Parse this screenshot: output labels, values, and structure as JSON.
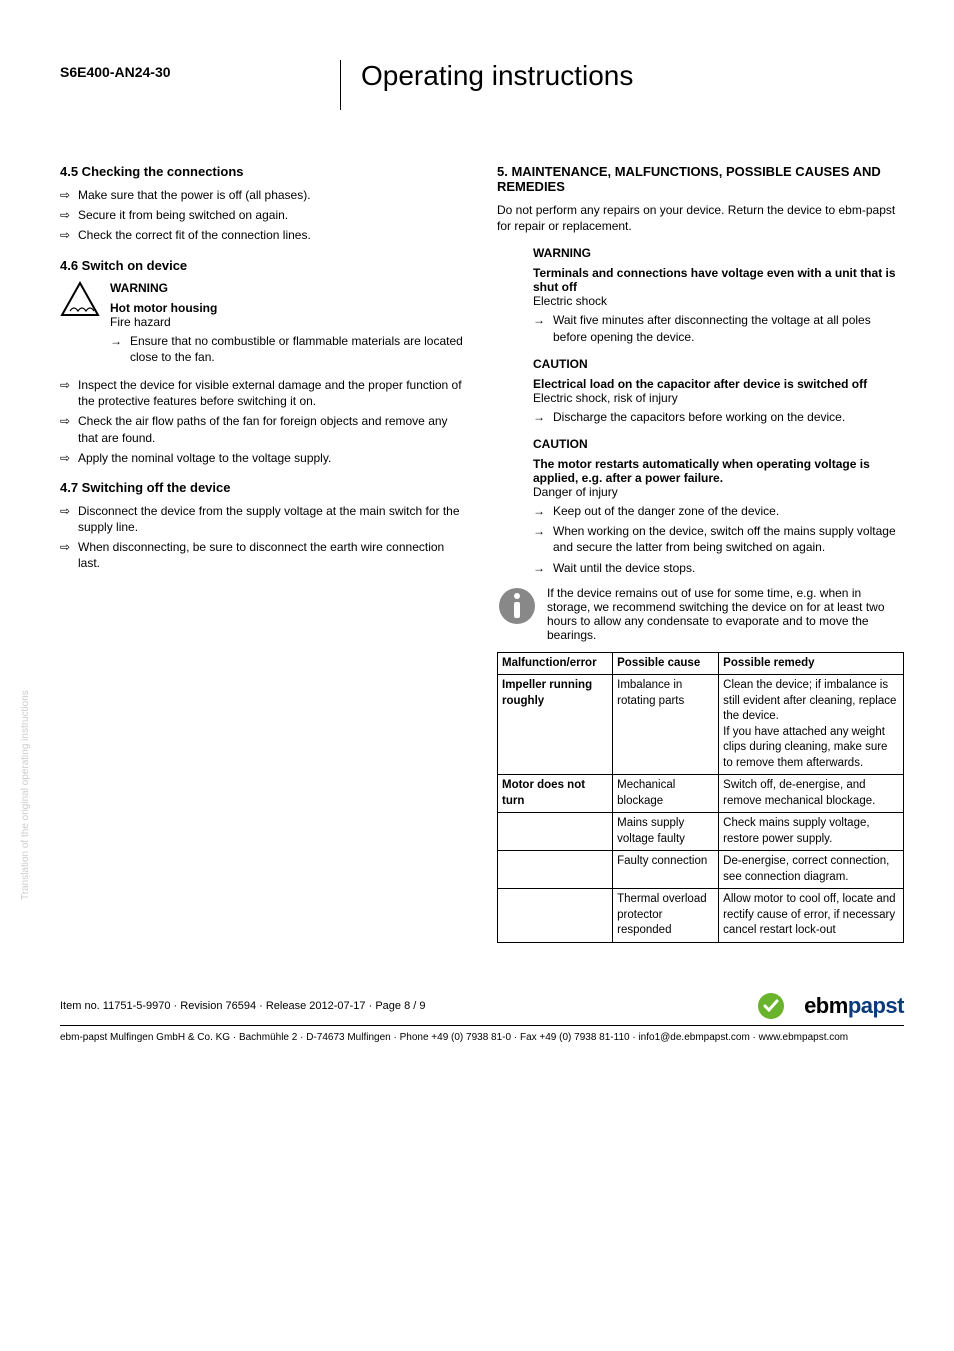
{
  "header": {
    "product_code": "S6E400-AN24-30",
    "title": "Operating instructions"
  },
  "side_text": "Translation of the original operating instructions",
  "left": {
    "s45_title": "4.5 Checking the connections",
    "s45_items": [
      "Make sure that the power is off (all phases).",
      "Secure it from being switched on again.",
      "Check the correct fit of the connection lines."
    ],
    "s46_title": "4.6 Switch on device",
    "s46_warning_label": "WARNING",
    "s46_warning_bold": "Hot motor housing",
    "s46_warning_text": "Fire hazard",
    "s46_warning_arrow": "Ensure that no combustible or flammable materials are located close to the fan.",
    "s46_items": [
      "Inspect the device for visible external damage and the proper function of the protective features before switching it on.",
      "Check the air flow paths of the fan for foreign objects and remove any that are found.",
      "Apply the nominal voltage to the voltage supply."
    ],
    "s47_title": "4.7 Switching off the device",
    "s47_items": [
      "Disconnect the device from the supply voltage at the main switch for the supply line.",
      "When disconnecting, be sure to disconnect the earth wire connection last."
    ]
  },
  "right": {
    "s5_title": "5. MAINTENANCE, MALFUNCTIONS, POSSIBLE CAUSES AND REMEDIES",
    "s5_intro": "Do not perform any repairs on your device. Return the device to ebm-papst for repair or replacement.",
    "w1_label": "WARNING",
    "w1_bold": "Terminals and connections have voltage even with a unit that is shut off",
    "w1_text": "Electric shock",
    "w1_arrow": "Wait five minutes after disconnecting the voltage at all poles before opening the device.",
    "c1_label": "CAUTION",
    "c1_bold": "Electrical load on the capacitor after device is switched off",
    "c1_text": "Electric shock, risk of injury",
    "c1_arrow": "Discharge the capacitors before working on the device.",
    "c2_label": "CAUTION",
    "c2_bold": "The motor restarts automatically when operating voltage is applied, e.g. after a power failure.",
    "c2_text": "Danger of injury",
    "c2_arrows": [
      "Keep out of the danger zone of the device.",
      "When working on the device, switch off the mains supply voltage and secure the latter from being switched on again.",
      "Wait until the device stops."
    ],
    "info_text": "If the device remains out of use for some time, e.g. when in storage, we recommend switching the device on for at least two hours to allow any condensate to evaporate and to move the bearings.",
    "table": {
      "headers": [
        "Malfunction/error",
        "Possible cause",
        "Possible remedy"
      ],
      "rows": [
        {
          "err": "Impeller running roughly",
          "cause": "Imbalance in rotating parts",
          "remedy": "Clean the device; if imbalance is still evident after cleaning, replace the device.\nIf you have attached any weight clips during cleaning, make sure to remove them afterwards."
        },
        {
          "err": "Motor does not turn",
          "cause": "Mechanical blockage",
          "remedy": "Switch off, de-energise, and remove mechanical blockage."
        },
        {
          "err": "",
          "cause": "Mains supply voltage faulty",
          "remedy": "Check mains supply voltage,\nrestore power supply."
        },
        {
          "err": "",
          "cause": "Faulty connection",
          "remedy": "De-energise, correct connection, see connection diagram."
        },
        {
          "err": "",
          "cause": "Thermal overload protector responded",
          "remedy": "Allow motor to cool off, locate and rectify cause of error, if necessary cancel restart lock-out"
        }
      ]
    }
  },
  "footer": {
    "line1": "Item no. 11751-5-9970 · Revision 76594 · Release 2012-07-17 · Page 8 / 9",
    "logo_black": "ebm",
    "logo_blue": "papst",
    "line2": "ebm-papst Mulfingen GmbH & Co. KG · Bachmühle 2 · D-74673 Mulfingen · Phone +49 (0) 7938 81-0 · Fax +49 (0) 7938 81-110 · info1@de.ebmpapst.com · www.ebmpapst.com"
  }
}
